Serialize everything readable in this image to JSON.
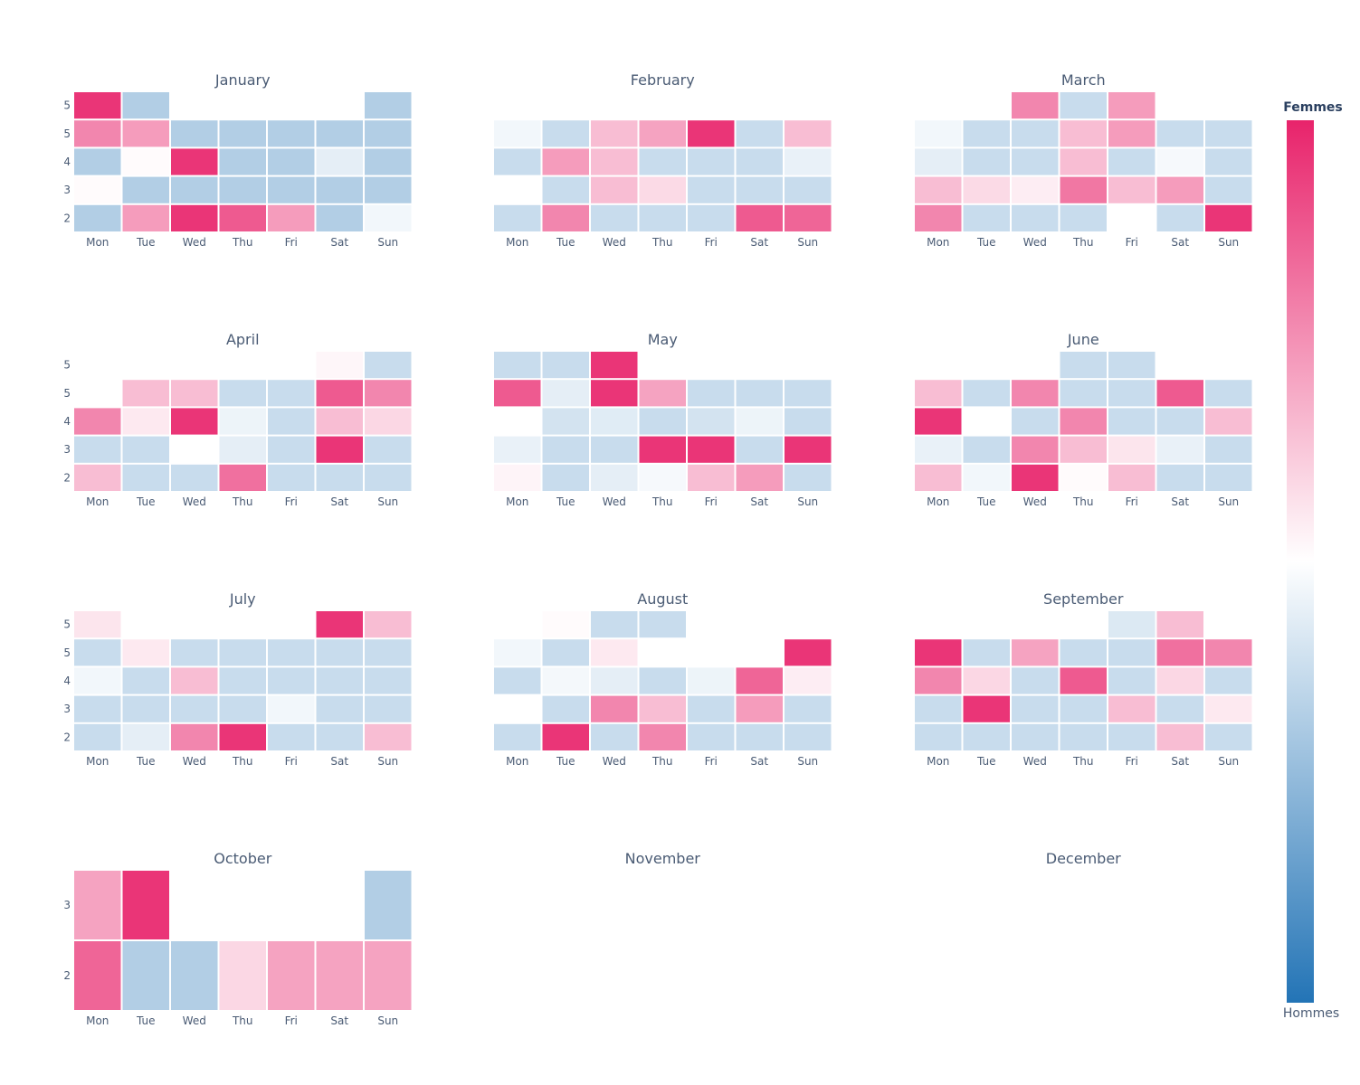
{
  "chart_data": {
    "type": "heatmap",
    "title": "",
    "colorscale": {
      "min_color": "#2374b6",
      "mid_color": "#ffffff",
      "max_color": "#e8236b",
      "top_label": "Femmes",
      "bottom_label": "Hommes",
      "range": [
        -1,
        1
      ]
    },
    "day_labels": [
      "Mon",
      "Tue",
      "Wed",
      "Thu",
      "Fri",
      "Sat",
      "Sun"
    ],
    "months": [
      {
        "name": "January",
        "row_labels": [
          "5",
          "5",
          "4",
          "3",
          "2"
        ],
        "values": [
          [
            0.92,
            -0.35,
            null,
            null,
            null,
            null,
            -0.35
          ],
          [
            0.55,
            0.45,
            -0.35,
            -0.35,
            -0.35,
            -0.35,
            -0.35
          ],
          [
            -0.35,
            0.02,
            0.92,
            -0.35,
            -0.35,
            -0.12,
            -0.35
          ],
          [
            0.02,
            -0.35,
            -0.35,
            -0.35,
            -0.35,
            -0.35,
            -0.35
          ],
          [
            -0.35,
            0.45,
            0.92,
            0.75,
            0.45,
            -0.35,
            -0.06
          ]
        ]
      },
      {
        "name": "February",
        "row_labels": [
          "",
          "",
          "",
          "",
          ""
        ],
        "values": [
          [
            null,
            null,
            null,
            null,
            null,
            null,
            null
          ],
          [
            -0.06,
            -0.25,
            0.3,
            0.42,
            0.92,
            -0.25,
            0.3
          ],
          [
            -0.25,
            0.45,
            0.3,
            -0.25,
            -0.25,
            -0.25,
            -0.1
          ],
          [
            null,
            -0.25,
            0.3,
            0.17,
            -0.25,
            -0.25,
            -0.25
          ],
          [
            -0.25,
            0.55,
            -0.25,
            -0.25,
            -0.25,
            0.75,
            0.7
          ]
        ]
      },
      {
        "name": "March",
        "row_labels": [
          "",
          "",
          "",
          "",
          ""
        ],
        "values": [
          [
            null,
            null,
            0.55,
            -0.25,
            0.45,
            null,
            null
          ],
          [
            -0.06,
            -0.25,
            -0.25,
            0.3,
            0.45,
            -0.25,
            -0.25
          ],
          [
            -0.12,
            -0.25,
            -0.25,
            0.3,
            -0.25,
            -0.04,
            -0.25
          ],
          [
            0.3,
            0.17,
            0.08,
            0.62,
            0.3,
            0.45,
            -0.25
          ],
          [
            0.55,
            -0.25,
            -0.25,
            -0.25,
            null,
            -0.25,
            0.92
          ]
        ]
      },
      {
        "name": "April",
        "row_labels": [
          "5",
          "5",
          "4",
          "3",
          "2"
        ],
        "values": [
          [
            null,
            null,
            null,
            null,
            null,
            0.04,
            -0.25
          ],
          [
            null,
            0.3,
            0.3,
            -0.25,
            -0.25,
            0.75,
            0.55
          ],
          [
            0.55,
            0.1,
            0.92,
            -0.08,
            -0.25,
            0.3,
            0.18
          ],
          [
            -0.25,
            -0.25,
            null,
            -0.12,
            -0.25,
            0.92,
            -0.25
          ],
          [
            0.3,
            -0.25,
            -0.25,
            0.65,
            -0.25,
            -0.25,
            -0.25
          ]
        ]
      },
      {
        "name": "May",
        "row_labels": [
          "",
          "",
          "",
          "",
          ""
        ],
        "values": [
          [
            -0.25,
            -0.25,
            0.92,
            null,
            null,
            null,
            null
          ],
          [
            0.75,
            -0.12,
            0.92,
            0.42,
            -0.25,
            -0.25,
            -0.25
          ],
          [
            null,
            -0.2,
            -0.14,
            -0.25,
            -0.2,
            -0.08,
            -0.25
          ],
          [
            -0.1,
            -0.25,
            -0.25,
            0.92,
            0.92,
            -0.25,
            0.92
          ],
          [
            0.05,
            -0.25,
            -0.12,
            -0.04,
            0.3,
            0.45,
            -0.25
          ]
        ]
      },
      {
        "name": "June",
        "row_labels": [
          "",
          "",
          "",
          "",
          ""
        ],
        "values": [
          [
            null,
            null,
            null,
            -0.25,
            -0.25,
            null,
            null
          ],
          [
            0.3,
            -0.25,
            0.55,
            -0.25,
            -0.25,
            0.75,
            -0.25
          ],
          [
            0.92,
            null,
            -0.25,
            0.55,
            -0.25,
            -0.25,
            0.3
          ],
          [
            -0.1,
            -0.25,
            0.55,
            0.3,
            0.12,
            -0.1,
            -0.25
          ],
          [
            0.3,
            -0.06,
            0.92,
            0.02,
            0.3,
            -0.25,
            -0.25
          ]
        ]
      },
      {
        "name": "July",
        "row_labels": [
          "5",
          "5",
          "4",
          "3",
          "2"
        ],
        "values": [
          [
            0.12,
            null,
            null,
            null,
            null,
            0.92,
            0.3
          ],
          [
            -0.25,
            0.1,
            -0.25,
            -0.25,
            -0.25,
            -0.25,
            -0.25
          ],
          [
            -0.06,
            -0.25,
            0.3,
            -0.25,
            -0.25,
            -0.25,
            -0.25
          ],
          [
            -0.25,
            -0.25,
            -0.25,
            -0.25,
            -0.06,
            -0.25,
            -0.25
          ],
          [
            -0.25,
            -0.12,
            0.55,
            0.92,
            -0.25,
            -0.25,
            0.3
          ]
        ]
      },
      {
        "name": "August",
        "row_labels": [
          "",
          "",
          "",
          "",
          ""
        ],
        "values": [
          [
            null,
            0.02,
            -0.25,
            -0.25,
            null,
            null,
            null
          ],
          [
            -0.06,
            -0.25,
            0.1,
            null,
            null,
            null,
            0.92
          ],
          [
            -0.25,
            -0.05,
            -0.12,
            -0.25,
            -0.08,
            0.7,
            0.08
          ],
          [
            null,
            -0.25,
            0.55,
            0.3,
            -0.25,
            0.45,
            -0.25
          ],
          [
            -0.25,
            0.92,
            -0.25,
            0.55,
            -0.25,
            -0.25,
            -0.25
          ]
        ]
      },
      {
        "name": "September",
        "row_labels": [
          "",
          "",
          "",
          "",
          ""
        ],
        "values": [
          [
            null,
            null,
            null,
            null,
            -0.16,
            0.3,
            null
          ],
          [
            0.92,
            -0.25,
            0.42,
            -0.25,
            -0.25,
            0.65,
            0.55
          ],
          [
            0.55,
            0.18,
            -0.25,
            0.75,
            -0.25,
            0.18,
            -0.25
          ],
          [
            -0.25,
            0.92,
            -0.25,
            -0.25,
            0.3,
            -0.25,
            0.1
          ],
          [
            -0.25,
            -0.25,
            -0.25,
            -0.25,
            -0.25,
            0.3,
            -0.25
          ]
        ]
      },
      {
        "name": "October",
        "row_labels": [
          "3",
          "2"
        ],
        "values": [
          [
            0.42,
            0.92,
            null,
            null,
            null,
            null,
            -0.35
          ],
          [
            0.7,
            -0.35,
            -0.35,
            0.18,
            0.42,
            0.42,
            0.42
          ]
        ]
      },
      {
        "name": "November",
        "row_labels": [],
        "values": []
      },
      {
        "name": "December",
        "row_labels": [],
        "values": []
      }
    ]
  }
}
